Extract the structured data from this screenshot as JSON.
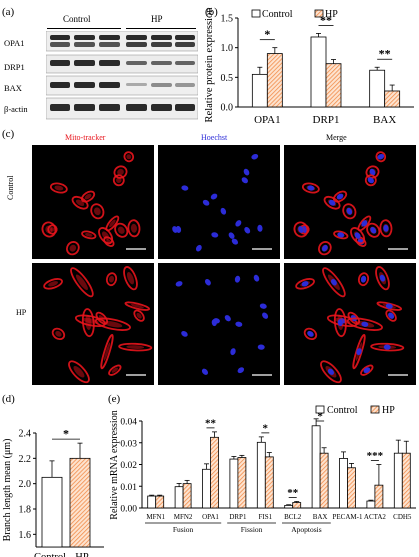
{
  "panels": {
    "a": "(a)",
    "b": "(b)",
    "c": "(c)",
    "d": "(d)",
    "e": "(e)"
  },
  "blot": {
    "groups": [
      "Control",
      "HP"
    ],
    "rows": [
      "OPA1",
      "DRP1",
      "BAX",
      "β-actin"
    ]
  },
  "micro": {
    "columns": [
      "Mito-tracker",
      "Hoechst",
      "Merge"
    ],
    "rows": [
      "Control",
      "HP"
    ],
    "colors": {
      "mito": "#e8141c",
      "hoechst": "#2c2cd8"
    }
  },
  "colors": {
    "hp_hatch": "#f28c4a",
    "control": "#ffffff"
  },
  "chart_data": [
    {
      "id": "b",
      "type": "bar",
      "ylabel": "Relative protein expression",
      "ylim": [
        0,
        1.5
      ],
      "yticks": [
        "0.0",
        "0.5",
        "1.0",
        "1.5"
      ],
      "categories": [
        "OPA1",
        "DRP1",
        "BAX"
      ],
      "series": [
        {
          "name": "Control",
          "values": [
            0.55,
            1.18,
            0.62
          ],
          "errors": [
            0.12,
            0.06,
            0.05
          ]
        },
        {
          "name": "HP",
          "values": [
            0.9,
            0.73,
            0.27
          ],
          "errors": [
            0.1,
            0.07,
            0.1
          ]
        }
      ],
      "significance": [
        "*",
        "**",
        "**"
      ],
      "legend": "top"
    },
    {
      "id": "d",
      "type": "bar",
      "ylabel": "Branch length mean (μm)",
      "ylim": [
        1.5,
        2.4
      ],
      "yticks": [
        "1.6",
        "1.8",
        "2.0",
        "2.2",
        "2.4"
      ],
      "categories": [
        "Control",
        "HP"
      ],
      "values": [
        2.05,
        2.2
      ],
      "errors": [
        0.13,
        0.12
      ],
      "significance": "*"
    },
    {
      "id": "e",
      "type": "bar",
      "ylabel": "Relative mRNA expression",
      "ylim": [
        0,
        0.04
      ],
      "yticks": [
        "0.00",
        "0.01",
        "0.02",
        "0.03",
        "0.04"
      ],
      "categories": [
        "MFN1",
        "MFN2",
        "OPA1",
        "DRP1",
        "FIS1",
        "BCL2",
        "BAX",
        "PECAM-1",
        "ACTA2",
        "CDH5"
      ],
      "series": [
        {
          "name": "Control",
          "values": [
            0.0055,
            0.0098,
            0.0178,
            0.0225,
            0.0302,
            0.0012,
            0.0378,
            0.0228,
            0.0032,
            0.0252
          ],
          "errors": [
            0.0004,
            0.0015,
            0.0025,
            0.0012,
            0.0025,
            0.0003,
            0.0032,
            0.003,
            0.0004,
            0.006
          ]
        },
        {
          "name": "HP",
          "values": [
            0.0055,
            0.0112,
            0.0325,
            0.0232,
            0.0235,
            0.0025,
            0.0252,
            0.0185,
            0.0105,
            0.0252
          ],
          "errors": [
            0.0004,
            0.0015,
            0.0025,
            0.001,
            0.002,
            0.0005,
            0.0025,
            0.002,
            0.0095,
            0.0055
          ]
        }
      ],
      "significance": [
        {
          "index": 2,
          "label": "**"
        },
        {
          "index": 4,
          "label": "*"
        },
        {
          "index": 5,
          "label": "**"
        },
        {
          "index": 6,
          "label": "*"
        },
        {
          "index": 8,
          "label": "***"
        }
      ],
      "groups": [
        {
          "label": "Fusion",
          "from": 0,
          "to": 2
        },
        {
          "label": "Fission",
          "from": 3,
          "to": 4
        },
        {
          "label": "Apoptosis",
          "from": 5,
          "to": 6
        }
      ],
      "legend": "top-right"
    }
  ]
}
